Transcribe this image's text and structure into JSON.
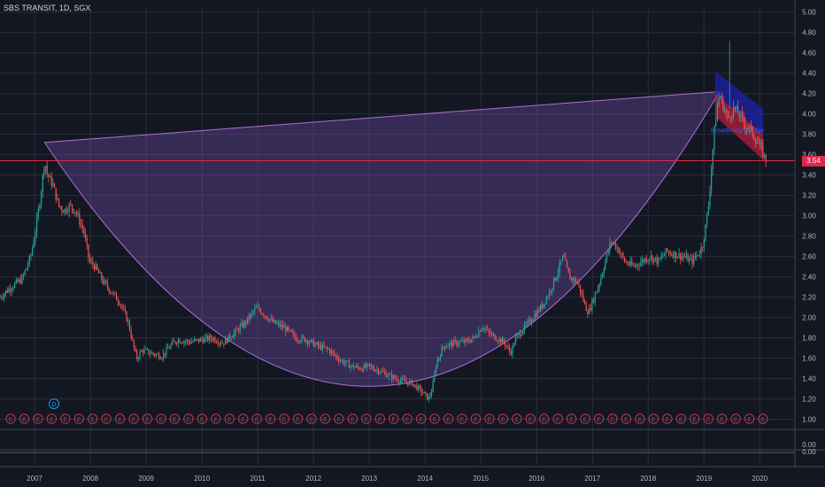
{
  "header": {
    "title": "SBS TRANSIT, 1D, SGX"
  },
  "price_tag": "3.54",
  "pattern_label": "Broadening Wedge",
  "colors": {
    "background": "#131722",
    "grid": "#2a2e39",
    "up": "#26a69a",
    "down": "#ef5350",
    "cup_fill": "#7e57c2",
    "current_price_line": "#e0294a",
    "channel_blue": "#1e22a8",
    "channel_red": "#b51f3c"
  },
  "indicator_axis_labels": [
    "0.00",
    "0.00"
  ],
  "events": {
    "dividend_label": "D",
    "earnings_label": "E",
    "earnings_count": 56
  },
  "chart_data": {
    "type": "candlestick",
    "title": "SBS TRANSIT, 1D, SGX",
    "xlabel": "",
    "ylabel": "",
    "x_ticks": [
      "2007",
      "2008",
      "2009",
      "2010",
      "2011",
      "2012",
      "2013",
      "2014",
      "2015",
      "2016",
      "2017",
      "2018",
      "2019",
      "2020"
    ],
    "y_ticks": [
      "1.00",
      "1.20",
      "1.40",
      "1.60",
      "1.80",
      "2.00",
      "2.20",
      "2.40",
      "2.60",
      "2.80",
      "3.00",
      "3.20",
      "3.40",
      "3.60",
      "3.80",
      "4.00",
      "4.20",
      "4.40",
      "4.60",
      "4.80",
      "5.00"
    ],
    "ylim": [
      0.9,
      5.05
    ],
    "xlim": [
      2006.4,
      2020.65
    ],
    "grid": true,
    "current_price": 3.54,
    "close_path": [
      [
        2006.4,
        2.2
      ],
      [
        2006.6,
        2.3
      ],
      [
        2006.8,
        2.38
      ],
      [
        2006.95,
        2.6
      ],
      [
        2007.05,
        2.9
      ],
      [
        2007.15,
        3.3
      ],
      [
        2007.2,
        3.55
      ],
      [
        2007.25,
        3.4
      ],
      [
        2007.35,
        3.3
      ],
      [
        2007.45,
        3.1
      ],
      [
        2007.55,
        3.05
      ],
      [
        2007.65,
        3.1
      ],
      [
        2007.75,
        3.05
      ],
      [
        2007.9,
        2.85
      ],
      [
        2008.0,
        2.55
      ],
      [
        2008.1,
        2.5
      ],
      [
        2008.25,
        2.35
      ],
      [
        2008.4,
        2.25
      ],
      [
        2008.55,
        2.15
      ],
      [
        2008.7,
        1.95
      ],
      [
        2008.8,
        1.7
      ],
      [
        2008.85,
        1.6
      ],
      [
        2008.95,
        1.68
      ],
      [
        2009.1,
        1.65
      ],
      [
        2009.3,
        1.62
      ],
      [
        2009.5,
        1.75
      ],
      [
        2009.6,
        1.78
      ],
      [
        2009.8,
        1.76
      ],
      [
        2010.0,
        1.78
      ],
      [
        2010.2,
        1.8
      ],
      [
        2010.4,
        1.75
      ],
      [
        2010.6,
        1.85
      ],
      [
        2010.8,
        1.95
      ],
      [
        2011.0,
        2.1
      ],
      [
        2011.1,
        2.05
      ],
      [
        2011.3,
        1.95
      ],
      [
        2011.5,
        1.9
      ],
      [
        2011.7,
        1.8
      ],
      [
        2011.9,
        1.78
      ],
      [
        2012.1,
        1.72
      ],
      [
        2012.3,
        1.68
      ],
      [
        2012.5,
        1.58
      ],
      [
        2012.7,
        1.52
      ],
      [
        2012.9,
        1.5
      ],
      [
        2013.0,
        1.52
      ],
      [
        2013.2,
        1.48
      ],
      [
        2013.4,
        1.42
      ],
      [
        2013.6,
        1.38
      ],
      [
        2013.8,
        1.35
      ],
      [
        2014.0,
        1.25
      ],
      [
        2014.08,
        1.2
      ],
      [
        2014.15,
        1.3
      ],
      [
        2014.22,
        1.55
      ],
      [
        2014.35,
        1.72
      ],
      [
        2014.55,
        1.75
      ],
      [
        2014.75,
        1.76
      ],
      [
        2014.9,
        1.8
      ],
      [
        2015.05,
        1.92
      ],
      [
        2015.15,
        1.85
      ],
      [
        2015.3,
        1.8
      ],
      [
        2015.45,
        1.75
      ],
      [
        2015.55,
        1.65
      ],
      [
        2015.65,
        1.8
      ],
      [
        2015.8,
        1.9
      ],
      [
        2015.95,
        2.0
      ],
      [
        2016.1,
        2.1
      ],
      [
        2016.25,
        2.25
      ],
      [
        2016.4,
        2.45
      ],
      [
        2016.5,
        2.6
      ],
      [
        2016.6,
        2.4
      ],
      [
        2016.75,
        2.35
      ],
      [
        2016.9,
        2.1
      ],
      [
        2016.95,
        2.05
      ],
      [
        2017.05,
        2.2
      ],
      [
        2017.15,
        2.35
      ],
      [
        2017.25,
        2.55
      ],
      [
        2017.35,
        2.75
      ],
      [
        2017.45,
        2.7
      ],
      [
        2017.6,
        2.55
      ],
      [
        2017.75,
        2.5
      ],
      [
        2017.9,
        2.55
      ],
      [
        2018.05,
        2.6
      ],
      [
        2018.2,
        2.55
      ],
      [
        2018.35,
        2.65
      ],
      [
        2018.5,
        2.62
      ],
      [
        2018.65,
        2.6
      ],
      [
        2018.8,
        2.55
      ],
      [
        2018.95,
        2.65
      ],
      [
        2019.0,
        2.72
      ],
      [
        2019.05,
        2.9
      ],
      [
        2019.1,
        3.1
      ],
      [
        2019.15,
        3.45
      ],
      [
        2019.2,
        3.8
      ],
      [
        2019.25,
        4.05
      ],
      [
        2019.3,
        4.2
      ],
      [
        2019.35,
        4.1
      ],
      [
        2019.45,
        3.95
      ],
      [
        2019.55,
        4.05
      ],
      [
        2019.65,
        4.0
      ],
      [
        2019.75,
        3.9
      ],
      [
        2019.85,
        3.85
      ],
      [
        2019.95,
        3.75
      ],
      [
        2020.05,
        3.65
      ],
      [
        2020.13,
        3.54
      ]
    ],
    "cup_pattern": {
      "left_rim": [
        2007.2,
        3.72
      ],
      "bottom": [
        2013.3,
        1.33
      ],
      "right_rim": [
        2019.3,
        4.22
      ]
    },
    "broadening_wedge": {
      "label": "Broadening Wedge",
      "upper_line": [
        [
          2019.22,
          4.42
        ],
        [
          2020.08,
          4.05
        ]
      ],
      "mid_line": [
        [
          2019.22,
          4.2
        ],
        [
          2020.08,
          3.8
        ]
      ],
      "lower_line": [
        [
          2019.22,
          3.98
        ],
        [
          2020.08,
          3.55
        ]
      ]
    }
  }
}
